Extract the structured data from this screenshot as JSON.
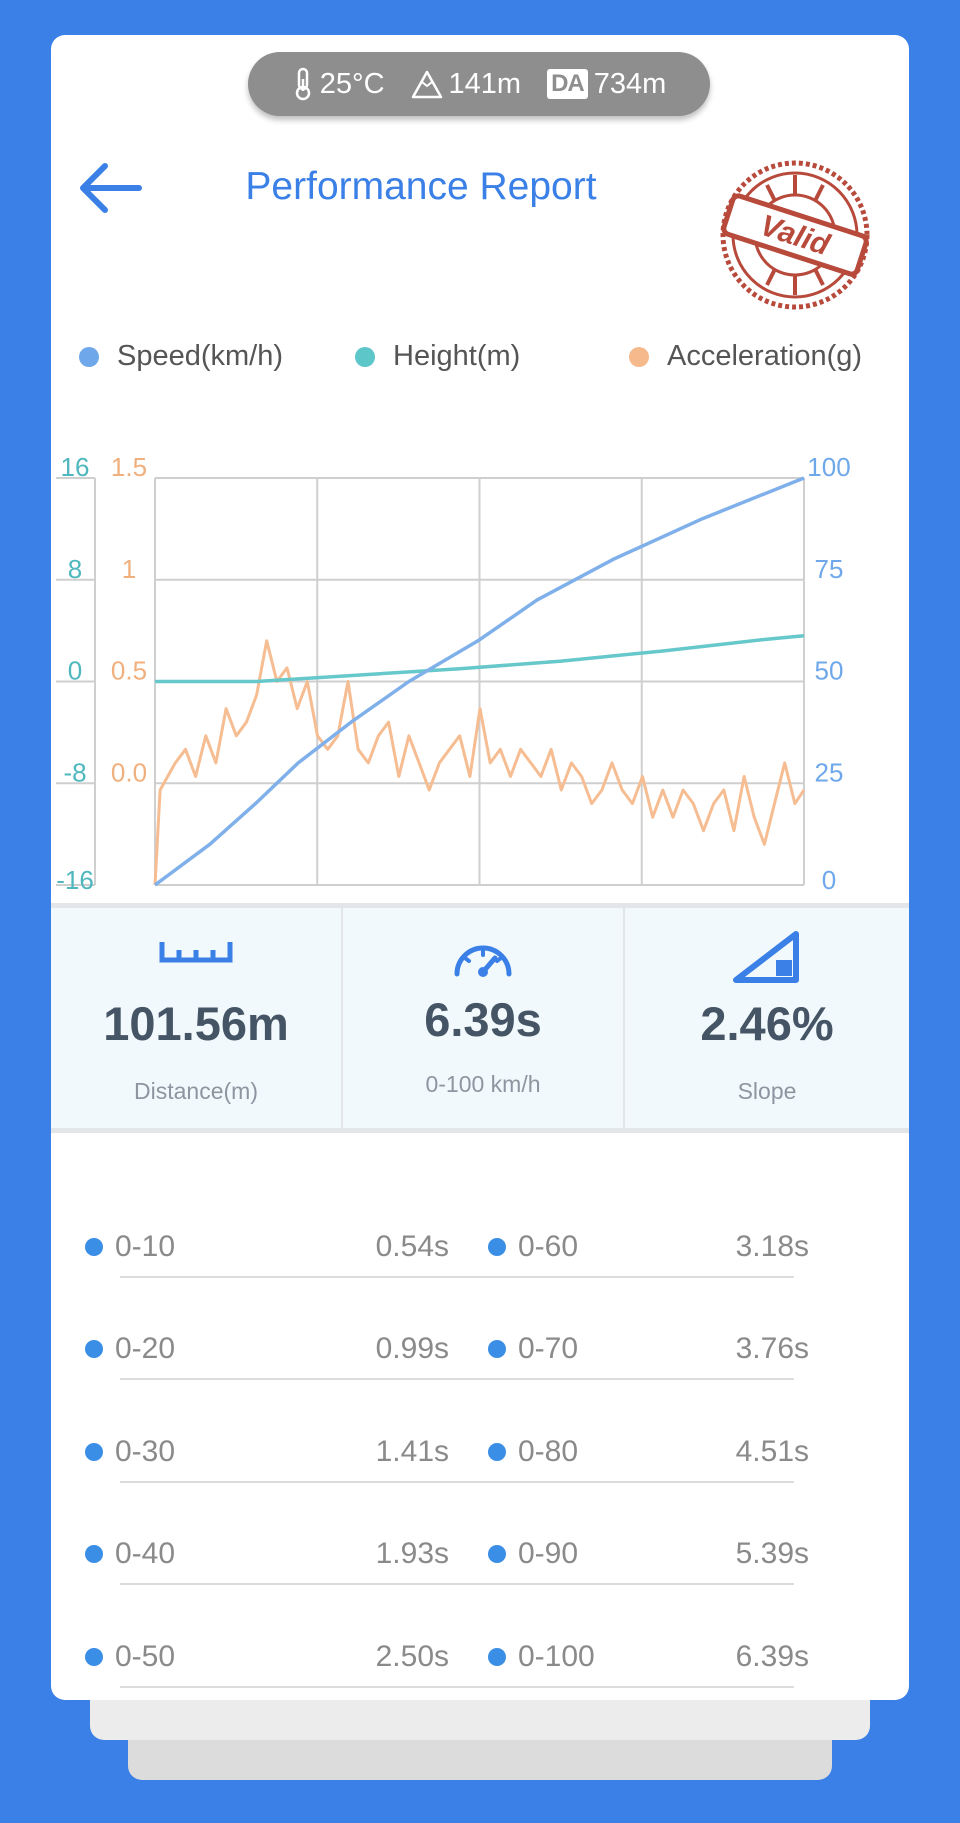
{
  "weather": {
    "temperature": "25°C",
    "altitude": "141m",
    "da_label": "DA",
    "density_altitude": "734m"
  },
  "header": {
    "title": "Performance Report",
    "stamp_text": "Valid"
  },
  "legend": [
    {
      "label": "Speed(km/h)",
      "color": "#6fa8ea"
    },
    {
      "label": "Height(m)",
      "color": "#5cc6c9"
    },
    {
      "label": "Acceleration(g)",
      "color": "#f5b98c"
    }
  ],
  "chart_data": {
    "type": "line",
    "axes": {
      "height_ticks": [
        "16",
        "8",
        "0",
        "-8",
        "-16"
      ],
      "accel_ticks": [
        "1.5",
        "1",
        "0.5",
        "0.0"
      ],
      "speed_ticks": [
        "100",
        "75",
        "50",
        "25",
        "0"
      ],
      "height_range": [
        -16,
        16
      ],
      "accel_range": [
        0,
        1.5
      ],
      "speed_range": [
        0,
        100
      ]
    },
    "grid": true,
    "x_range": [
      0,
      6.39
    ],
    "series": [
      {
        "name": "Speed(km/h)",
        "color": "#7fb0ea",
        "x": [
          0,
          0.54,
          0.99,
          1.41,
          1.93,
          2.5,
          3.18,
          3.76,
          4.51,
          5.39,
          6.39
        ],
        "y": [
          0,
          10,
          20,
          30,
          40,
          50,
          60,
          70,
          80,
          90,
          100
        ]
      },
      {
        "name": "Height(m)",
        "color": "#66c8ca",
        "x": [
          0,
          1,
          2,
          3,
          4,
          5,
          6,
          6.39
        ],
        "y": [
          0,
          0,
          0.5,
          1,
          1.6,
          2.4,
          3.3,
          3.6
        ]
      },
      {
        "name": "Acceleration(g)",
        "color": "#f6bd92",
        "x": [
          0,
          0.05,
          0.2,
          0.3,
          0.4,
          0.5,
          0.6,
          0.7,
          0.8,
          0.9,
          1.0,
          1.1,
          1.2,
          1.3,
          1.4,
          1.5,
          1.6,
          1.7,
          1.8,
          1.9,
          2.0,
          2.1,
          2.2,
          2.3,
          2.4,
          2.5,
          2.6,
          2.7,
          2.8,
          2.9,
          3.0,
          3.1,
          3.2,
          3.3,
          3.4,
          3.5,
          3.6,
          3.7,
          3.8,
          3.9,
          4.0,
          4.1,
          4.2,
          4.3,
          4.4,
          4.5,
          4.6,
          4.7,
          4.8,
          4.9,
          5.0,
          5.1,
          5.2,
          5.3,
          5.4,
          5.5,
          5.6,
          5.7,
          5.8,
          5.9,
          6.0,
          6.1,
          6.2,
          6.3,
          6.39
        ],
        "y": [
          0.0,
          0.35,
          0.45,
          0.5,
          0.4,
          0.55,
          0.45,
          0.65,
          0.55,
          0.6,
          0.7,
          0.9,
          0.75,
          0.8,
          0.65,
          0.75,
          0.55,
          0.5,
          0.55,
          0.75,
          0.5,
          0.45,
          0.55,
          0.6,
          0.4,
          0.55,
          0.45,
          0.35,
          0.45,
          0.5,
          0.55,
          0.4,
          0.65,
          0.45,
          0.5,
          0.4,
          0.5,
          0.45,
          0.4,
          0.5,
          0.35,
          0.45,
          0.4,
          0.3,
          0.35,
          0.45,
          0.35,
          0.3,
          0.4,
          0.25,
          0.35,
          0.25,
          0.35,
          0.3,
          0.2,
          0.3,
          0.35,
          0.2,
          0.4,
          0.25,
          0.15,
          0.3,
          0.45,
          0.3,
          0.35
        ]
      }
    ]
  },
  "stats": [
    {
      "value": "101.56m",
      "label": "Distance(m)",
      "icon": "ruler-icon"
    },
    {
      "value": "6.39s",
      "label": "0-100 km/h",
      "icon": "speedometer-icon"
    },
    {
      "value": "2.46%",
      "label": "Slope",
      "icon": "slope-icon"
    }
  ],
  "splits": [
    {
      "left_range": "0-10",
      "left_time": "0.54s",
      "right_range": "0-60",
      "right_time": "3.18s"
    },
    {
      "left_range": "0-20",
      "left_time": "0.99s",
      "right_range": "0-70",
      "right_time": "3.76s"
    },
    {
      "left_range": "0-30",
      "left_time": "1.41s",
      "right_range": "0-80",
      "right_time": "4.51s"
    },
    {
      "left_range": "0-40",
      "left_time": "1.93s",
      "right_range": "0-90",
      "right_time": "5.39s"
    },
    {
      "left_range": "0-50",
      "left_time": "2.50s",
      "right_range": "0-100",
      "right_time": "6.39s"
    }
  ]
}
